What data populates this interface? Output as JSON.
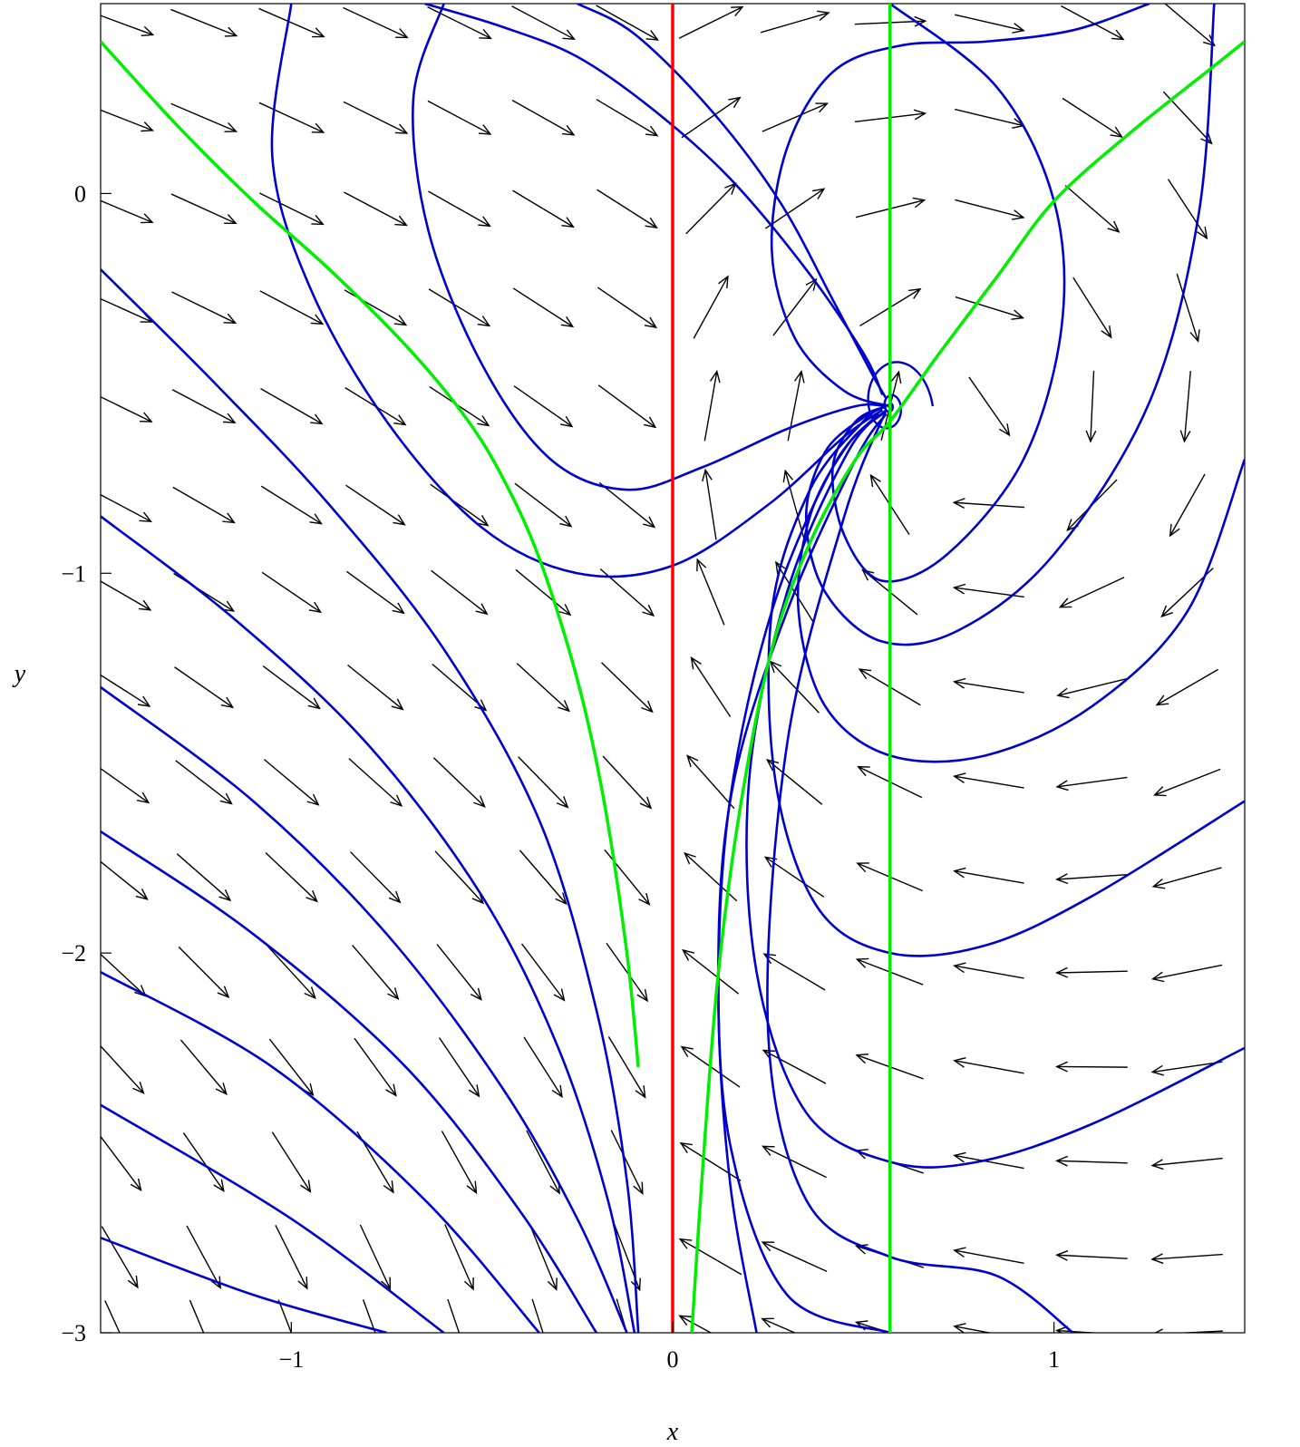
{
  "chart_data": {
    "type": "vector_field",
    "title": "",
    "xlabel": "x",
    "ylabel": "y",
    "xlim": [
      -1.5,
      1.5
    ],
    "ylim": [
      -3.0,
      0.5
    ],
    "x_ticks": [
      {
        "value": -1,
        "label": "−1"
      },
      {
        "value": 0,
        "label": "0"
      },
      {
        "value": 1,
        "label": "1"
      }
    ],
    "y_ticks": [
      {
        "value": 0,
        "label": "0"
      },
      {
        "value": -1,
        "label": "−1"
      },
      {
        "value": -2,
        "label": "−2"
      },
      {
        "value": -3,
        "label": "−3"
      }
    ],
    "grid": false,
    "legend": "none",
    "equilibrium": {
      "x": 0.57,
      "y": -0.56,
      "kind": "stable spiral"
    },
    "vector_field": {
      "grid_x": [
        -1.45,
        -1.23,
        -1.0,
        -0.78,
        -0.56,
        -0.34,
        -0.12,
        0.1,
        0.32,
        0.57,
        0.83,
        1.1,
        1.35
      ],
      "grid_y": [
        0.45,
        0.2,
        -0.04,
        -0.3,
        -0.56,
        -0.82,
        -1.05,
        -1.3,
        -1.55,
        -1.8,
        -2.05,
        -2.3,
        -2.55,
        -2.8,
        -3.0
      ],
      "color": "#000000"
    },
    "nullclines": [
      {
        "name": "",
        "color": "#ff0000",
        "kind": "vertical",
        "x": 0.0,
        "y_range": [
          -3.0,
          0.5
        ]
      },
      {
        "name": "",
        "color": "#00ee00",
        "kind": "vertical",
        "x": 0.57,
        "y_range": [
          -3.0,
          0.5
        ]
      },
      {
        "name": "",
        "color": "#00ee00",
        "kind": "curve",
        "x": [
          -1.5,
          -1.3,
          -1.1,
          -0.9,
          -0.7,
          -0.55,
          -0.45,
          -0.35,
          -0.25,
          -0.18,
          -0.12,
          -0.09
        ],
        "y": [
          0.4,
          0.18,
          -0.02,
          -0.2,
          -0.4,
          -0.58,
          -0.74,
          -0.96,
          -1.28,
          -1.6,
          -2.0,
          -2.3
        ]
      },
      {
        "name": "",
        "color": "#00ee00",
        "kind": "curve",
        "x": [
          0.05,
          0.08,
          0.12,
          0.18,
          0.26,
          0.36,
          0.48,
          0.57,
          0.7,
          0.85,
          1.0,
          1.2,
          1.4,
          1.5
        ],
        "y": [
          -3.0,
          -2.55,
          -2.05,
          -1.6,
          -1.2,
          -0.92,
          -0.7,
          -0.6,
          -0.42,
          -0.22,
          -0.02,
          0.16,
          0.32,
          0.4
        ]
      }
    ],
    "trajectories": {
      "color": "#0000cc",
      "curves": [
        {
          "x": [
            1.25,
            1.05,
            0.82,
            0.6,
            0.42,
            0.3,
            0.26,
            0.32,
            0.45,
            0.57
          ],
          "y": [
            0.5,
            0.43,
            0.4,
            0.39,
            0.32,
            0.12,
            -0.15,
            -0.38,
            -0.52,
            -0.56
          ]
        },
        {
          "x": [
            -0.65,
            -0.45,
            -0.25,
            -0.05,
            0.15,
            0.35,
            0.5,
            0.55
          ],
          "y": [
            0.5,
            0.44,
            0.36,
            0.22,
            0.04,
            -0.2,
            -0.42,
            -0.53
          ]
        },
        {
          "x": [
            -0.25,
            -0.1,
            0.1,
            0.28,
            0.42,
            0.52,
            0.56
          ],
          "y": [
            0.5,
            0.42,
            0.22,
            -0.02,
            -0.28,
            -0.47,
            -0.54
          ]
        },
        {
          "x": [
            -0.6,
            -0.68,
            -0.64,
            -0.5,
            -0.32,
            -0.12,
            0.08,
            0.3,
            0.48,
            0.56
          ],
          "y": [
            0.5,
            0.25,
            -0.1,
            -0.45,
            -0.7,
            -0.78,
            -0.72,
            -0.62,
            -0.56,
            -0.56
          ]
        },
        {
          "x": [
            -1.0,
            -1.05,
            -0.95,
            -0.75,
            -0.5,
            -0.25,
            0.0,
            0.25,
            0.45,
            0.55
          ],
          "y": [
            0.5,
            0.1,
            -0.25,
            -0.6,
            -0.88,
            -1.0,
            -0.98,
            -0.82,
            -0.64,
            -0.57
          ]
        },
        {
          "x": [
            0.57,
            0.85,
            1.0,
            1.02,
            0.92,
            0.72,
            0.55,
            0.45,
            0.42,
            0.48,
            0.56
          ],
          "y": [
            0.5,
            0.28,
            -0.02,
            -0.35,
            -0.7,
            -0.95,
            -1.02,
            -0.9,
            -0.72,
            -0.6,
            -0.56
          ]
        },
        {
          "x": [
            1.42,
            1.38,
            1.25,
            1.0,
            0.75,
            0.55,
            0.4,
            0.35,
            0.4,
            0.5,
            0.56
          ],
          "y": [
            0.5,
            -0.05,
            -0.55,
            -0.95,
            -1.15,
            -1.18,
            -1.05,
            -0.85,
            -0.68,
            -0.59,
            -0.56
          ]
        },
        {
          "x": [
            1.5,
            1.35,
            1.1,
            0.82,
            0.57,
            0.4,
            0.33,
            0.36,
            0.46,
            0.55
          ],
          "y": [
            -0.7,
            -1.1,
            -1.35,
            -1.48,
            -1.48,
            -1.35,
            -1.1,
            -0.85,
            -0.66,
            -0.58
          ]
        },
        {
          "x": [
            -1.5,
            -1.2,
            -0.9,
            -0.6,
            -0.35,
            -0.2,
            -0.12,
            -0.09
          ],
          "y": [
            -0.2,
            -0.5,
            -0.82,
            -1.2,
            -1.65,
            -2.15,
            -2.6,
            -3.0
          ]
        },
        {
          "x": [
            -1.5,
            -1.15,
            -0.8,
            -0.5,
            -0.3,
            -0.17,
            -0.1
          ],
          "y": [
            -0.85,
            -1.12,
            -1.45,
            -1.85,
            -2.25,
            -2.65,
            -3.0
          ]
        },
        {
          "x": [
            -1.5,
            -1.1,
            -0.75,
            -0.45,
            -0.25,
            -0.12
          ],
          "y": [
            -1.3,
            -1.6,
            -1.95,
            -2.35,
            -2.7,
            -3.0
          ]
        },
        {
          "x": [
            -1.5,
            -1.1,
            -0.7,
            -0.4,
            -0.2
          ],
          "y": [
            -1.68,
            -1.95,
            -2.3,
            -2.68,
            -3.0
          ]
        },
        {
          "x": [
            -1.5,
            -1.05,
            -0.65,
            -0.35
          ],
          "y": [
            -2.05,
            -2.3,
            -2.65,
            -3.0
          ]
        },
        {
          "x": [
            -1.5,
            -1.0,
            -0.6
          ],
          "y": [
            -2.4,
            -2.7,
            -3.0
          ]
        },
        {
          "x": [
            -1.5,
            -1.1,
            -0.75
          ],
          "y": [
            -2.75,
            -2.9,
            -3.0
          ]
        },
        {
          "x": [
            0.57,
            0.3,
            0.15,
            0.12,
            0.16,
            0.3,
            0.48,
            0.56
          ],
          "y": [
            -3.0,
            -2.9,
            -2.5,
            -2.0,
            -1.55,
            -1.1,
            -0.7,
            -0.58
          ]
        },
        {
          "x": [
            1.5,
            1.1,
            0.8,
            0.57,
            0.35,
            0.22,
            0.2,
            0.3,
            0.46,
            0.56
          ],
          "y": [
            -2.25,
            -2.45,
            -2.55,
            -2.55,
            -2.42,
            -2.05,
            -1.55,
            -1.05,
            -0.68,
            -0.57
          ]
        },
        {
          "x": [
            1.5,
            1.1,
            0.82,
            0.57,
            0.38,
            0.27,
            0.26,
            0.36,
            0.5,
            0.56
          ],
          "y": [
            -1.6,
            -1.85,
            -1.98,
            -2.0,
            -1.88,
            -1.55,
            -1.1,
            -0.78,
            -0.6,
            -0.56
          ]
        },
        {
          "x": [
            1.05,
            0.85,
            0.57,
            0.35,
            0.25,
            0.3,
            0.45,
            0.56
          ],
          "y": [
            -3.0,
            -2.85,
            -2.8,
            -2.65,
            -2.2,
            -1.45,
            -0.85,
            -0.57
          ]
        },
        {
          "x": [
            0.22,
            0.15,
            0.12,
            0.15,
            0.26,
            0.42,
            0.54
          ],
          "y": [
            -3.0,
            -2.6,
            -2.1,
            -1.6,
            -1.1,
            -0.72,
            -0.58
          ]
        }
      ]
    }
  }
}
